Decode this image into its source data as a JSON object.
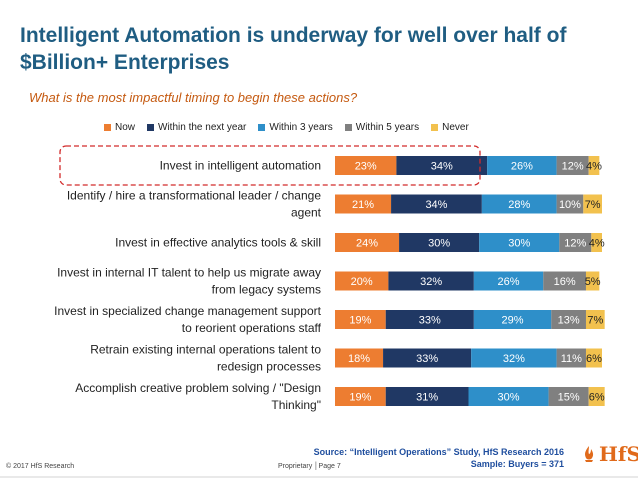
{
  "title": "Intelligent Automation is underway for well over half of $Billion+ Enterprises",
  "subtitle": "What is the most impactful timing to begin these actions?",
  "footer": {
    "copyright": "© 2017 HfS Research",
    "proprietary": "Proprietary │Page 7",
    "source": "Source: “Intelligent Operations” Study, HfS Research 2016",
    "sample": "Sample: Buyers = 371",
    "logo_text": "HfS"
  },
  "colors": {
    "now": "#ed7d31",
    "within_next_year": "#203864",
    "within_3_years": "#2e8fc9",
    "within_5_years": "#808080",
    "never": "#f2c14e",
    "highlight": "#d22b2b"
  },
  "chart_data": {
    "type": "bar",
    "orientation": "horizontal",
    "stacked": true,
    "title": "What is the most impactful timing to begin these actions?",
    "xlim": [
      0,
      100
    ],
    "legend_position": "top",
    "categories": [
      "Invest in intelligent automation",
      "Identify / hire a transformational leader / change agent",
      "Invest in effective analytics tools & skill",
      "Invest in internal IT talent to help us migrate away from legacy systems",
      "Invest in specialized change management support to reorient operations staff",
      "Retrain existing internal operations talent to redesign processes",
      "Accomplish creative problem solving / \"Design Thinking\""
    ],
    "category_lines": [
      [
        "Invest in intelligent automation"
      ],
      [
        "Identify / hire a transformational leader / change",
        "agent"
      ],
      [
        "Invest in effective analytics tools & skill"
      ],
      [
        "Invest in internal IT talent to help us migrate away",
        "from legacy systems"
      ],
      [
        "Invest in specialized change management support",
        "to reorient operations staff"
      ],
      [
        "Retrain existing internal operations talent to",
        "redesign processes"
      ],
      [
        "Accomplish creative problem solving / \"Design",
        "Thinking\""
      ]
    ],
    "series": [
      {
        "name": "Now",
        "color_key": "now",
        "label_color": "#ffffff",
        "values": [
          23,
          21,
          24,
          20,
          19,
          18,
          19
        ]
      },
      {
        "name": "Within the next year",
        "color_key": "within_next_year",
        "label_color": "#ffffff",
        "values": [
          34,
          34,
          30,
          32,
          33,
          33,
          31
        ]
      },
      {
        "name": "Within 3 years",
        "color_key": "within_3_years",
        "label_color": "#ffffff",
        "values": [
          26,
          28,
          30,
          26,
          29,
          32,
          30
        ]
      },
      {
        "name": "Within 5 years",
        "color_key": "within_5_years",
        "label_color": "#ffffff",
        "values": [
          12,
          10,
          12,
          16,
          13,
          11,
          15
        ]
      },
      {
        "name": "Never",
        "color_key": "never",
        "label_color": "#222222",
        "values": [
          4,
          7,
          4,
          5,
          7,
          6,
          6
        ]
      }
    ],
    "highlighted_category": "Invest in intelligent automation"
  }
}
